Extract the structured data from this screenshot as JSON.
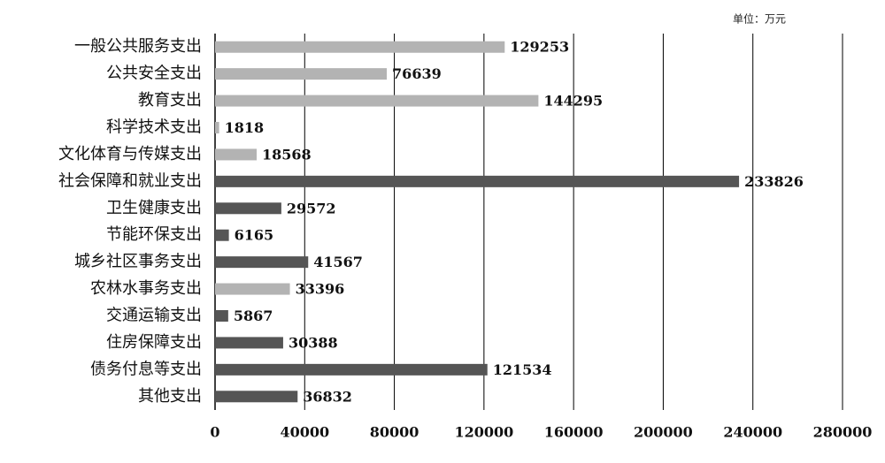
{
  "chart_data": {
    "type": "hbar",
    "unit_note": "单位：万元",
    "categories": [
      "一般公共服务支出",
      "公共安全支出",
      "教育支出",
      "科学技术支出",
      "文化体育与传媒支出",
      "社会保障和就业支出",
      "卫生健康支出",
      "节能环保支出",
      "城乡社区事务支出",
      "农林水事务支出",
      "交通运输支出",
      "住房保障支出",
      "债务付息等支出",
      "其他支出"
    ],
    "values": [
      129253,
      76639,
      144295,
      1818,
      18568,
      233826,
      29572,
      6165,
      41567,
      33396,
      5867,
      30388,
      121534,
      36832
    ],
    "colors": [
      "#b3b3b3",
      "#b3b3b3",
      "#b3b3b3",
      "#b3b3b3",
      "#b3b3b3",
      "#555555",
      "#555555",
      "#555555",
      "#555555",
      "#b3b3b3",
      "#555555",
      "#555555",
      "#555555",
      "#555555"
    ],
    "xlim": [
      0,
      280000
    ],
    "xticks": [
      0,
      40000,
      80000,
      120000,
      160000,
      200000,
      240000,
      280000
    ],
    "grid": true
  }
}
